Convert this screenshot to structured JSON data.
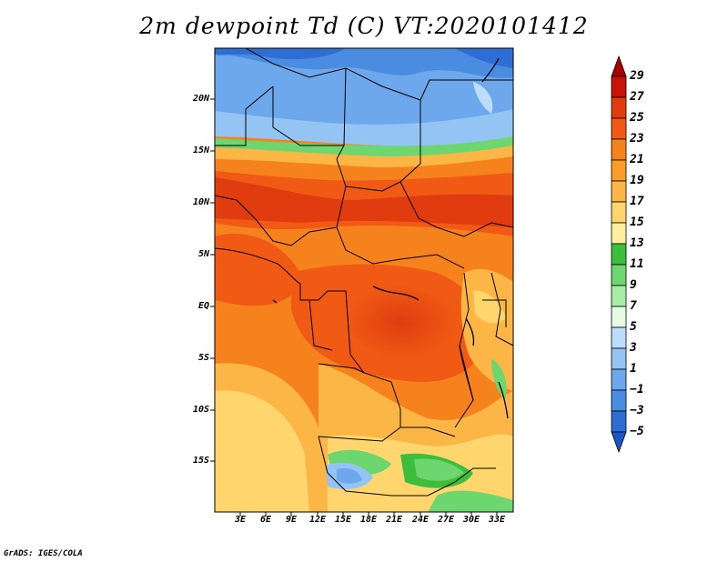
{
  "title": "2m dewpoint Td (C) VT:2020101412",
  "credit": "GrADS: IGES/COLA",
  "lat_labels": [
    "20N",
    "15N",
    "10N",
    "5N",
    "EQ",
    "5S",
    "10S",
    "15S"
  ],
  "lon_labels": [
    "3E",
    "6E",
    "9E",
    "12E",
    "15E",
    "18E",
    "21E",
    "24E",
    "27E",
    "30E",
    "33E"
  ],
  "colorbar": {
    "labels": [
      "29",
      "27",
      "25",
      "23",
      "21",
      "19",
      "17",
      "15",
      "13",
      "11",
      "9",
      "7",
      "5",
      "3",
      "1",
      "−1",
      "−3",
      "−5"
    ],
    "colors": [
      "#a80000",
      "#c81408",
      "#e03c10",
      "#f05a14",
      "#f6821e",
      "#fa9c28",
      "#fcb646",
      "#ffd66e",
      "#ffee9e",
      "#3cbe3c",
      "#6ed66e",
      "#a6eea6",
      "#e6fae6",
      "#bcdcfa",
      "#94c4f4",
      "#6ea8ec",
      "#4a8ce0",
      "#2e6ed4",
      "#1a56c6"
    ]
  }
}
